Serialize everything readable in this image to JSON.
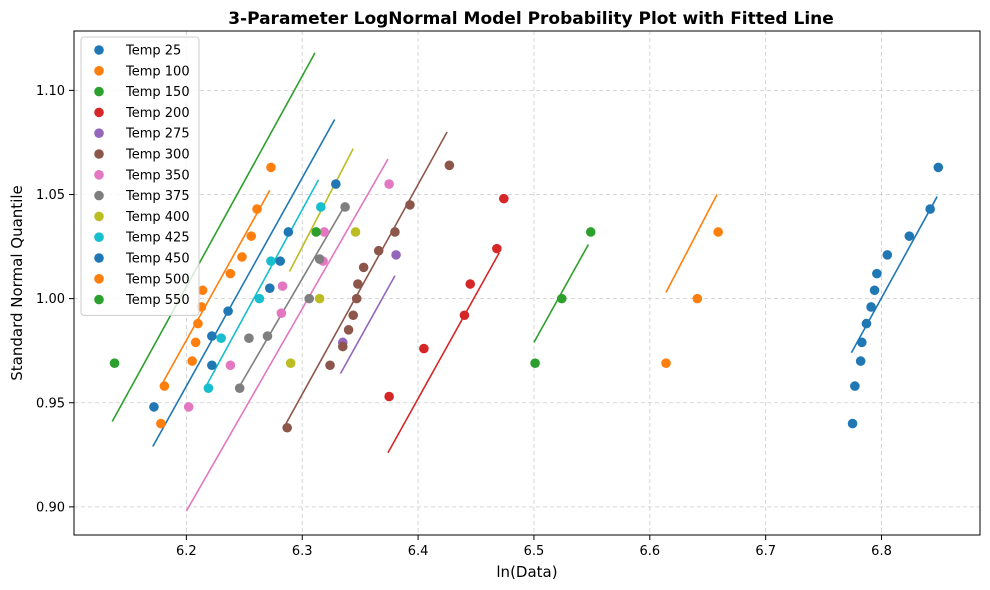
{
  "chart_data": {
    "type": "scatter",
    "title": "3-Parameter LogNormal Model Probability Plot with Fitted Line",
    "xlabel": "ln(Data)",
    "ylabel": "Standard Normal Quantile",
    "xlim": [
      6.103,
      6.885
    ],
    "ylim": [
      0.8865,
      1.1285
    ],
    "xticks": [
      "6.2",
      "6.3",
      "6.4",
      "6.5",
      "6.6",
      "6.7",
      "6.8"
    ],
    "yticks": [
      "0.90",
      "0.95",
      "1.00",
      "1.05",
      "1.10"
    ],
    "grid": true,
    "legend_position": "top-left",
    "series": [
      {
        "name": "Temp 25",
        "color": "#1f77b4",
        "points": [
          [
            6.775,
            0.94
          ],
          [
            6.777,
            0.958
          ],
          [
            6.782,
            0.97
          ],
          [
            6.783,
            0.979
          ],
          [
            6.787,
            0.988
          ],
          [
            6.791,
            0.996
          ],
          [
            6.794,
            1.004
          ],
          [
            6.796,
            1.012
          ],
          [
            6.805,
            1.021
          ],
          [
            6.824,
            1.03
          ],
          [
            6.842,
            1.043
          ],
          [
            6.849,
            1.063
          ]
        ],
        "fit": [
          [
            6.774,
            0.974
          ],
          [
            6.848,
            1.049
          ]
        ]
      },
      {
        "name": "Temp 100",
        "color": "#ff7f0e",
        "points": [
          [
            6.614,
            0.969
          ],
          [
            6.641,
            1.0
          ],
          [
            6.659,
            1.032
          ]
        ],
        "fit": [
          [
            6.614,
            1.003
          ],
          [
            6.658,
            1.05
          ]
        ]
      },
      {
        "name": "Temp 150",
        "color": "#2ca02c",
        "points": [
          [
            6.501,
            0.969
          ],
          [
            6.524,
            1.0
          ],
          [
            6.549,
            1.032
          ]
        ],
        "fit": [
          [
            6.5,
            0.979
          ],
          [
            6.547,
            1.026
          ]
        ]
      },
      {
        "name": "Temp 200",
        "color": "#d62728",
        "points": [
          [
            6.375,
            0.953
          ],
          [
            6.405,
            0.976
          ],
          [
            6.44,
            0.992
          ],
          [
            6.445,
            1.007
          ],
          [
            6.468,
            1.024
          ],
          [
            6.474,
            1.048
          ]
        ],
        "fit": [
          [
            6.374,
            0.926
          ],
          [
            6.47,
            1.022
          ]
        ]
      },
      {
        "name": "Temp 275",
        "color": "#9467bd",
        "points": [
          [
            6.335,
            0.979
          ],
          [
            6.381,
            1.021
          ]
        ],
        "fit": [
          [
            6.333,
            0.964
          ],
          [
            6.38,
            1.011
          ]
        ]
      },
      {
        "name": "Temp 300",
        "color": "#8c564b",
        "points": [
          [
            6.287,
            0.938
          ],
          [
            6.324,
            0.968
          ],
          [
            6.335,
            0.977
          ],
          [
            6.34,
            0.985
          ],
          [
            6.344,
            0.992
          ],
          [
            6.347,
            1.0
          ],
          [
            6.348,
            1.007
          ],
          [
            6.353,
            1.015
          ],
          [
            6.366,
            1.023
          ],
          [
            6.38,
            1.032
          ],
          [
            6.393,
            1.045
          ],
          [
            6.427,
            1.064
          ]
        ],
        "fit": [
          [
            6.286,
            0.94
          ],
          [
            6.425,
            1.08
          ]
        ]
      },
      {
        "name": "Temp 350",
        "color": "#e377c2",
        "points": [
          [
            6.202,
            0.948
          ],
          [
            6.238,
            0.968
          ],
          [
            6.282,
            0.993
          ],
          [
            6.283,
            1.006
          ],
          [
            6.318,
            1.018
          ],
          [
            6.319,
            1.032
          ],
          [
            6.375,
            1.055
          ]
        ],
        "fit": [
          [
            6.2,
            0.898
          ],
          [
            6.374,
            1.067
          ]
        ]
      },
      {
        "name": "Temp 375",
        "color": "#7f7f7f",
        "points": [
          [
            6.246,
            0.957
          ],
          [
            6.254,
            0.981
          ],
          [
            6.27,
            0.982
          ],
          [
            6.306,
            1.0
          ],
          [
            6.315,
            1.019
          ],
          [
            6.337,
            1.044
          ]
        ],
        "fit": [
          [
            6.246,
            0.958
          ],
          [
            6.335,
            1.043
          ]
        ]
      },
      {
        "name": "Temp 400",
        "color": "#bcbd22",
        "points": [
          [
            6.29,
            0.969
          ],
          [
            6.315,
            1.0
          ],
          [
            6.346,
            1.032
          ]
        ],
        "fit": [
          [
            6.289,
            1.013
          ],
          [
            6.344,
            1.072
          ]
        ]
      },
      {
        "name": "Temp 425",
        "color": "#17becf",
        "points": [
          [
            6.219,
            0.957
          ],
          [
            6.23,
            0.981
          ],
          [
            6.263,
            1.0
          ],
          [
            6.273,
            1.018
          ],
          [
            6.316,
            1.044
          ]
        ],
        "fit": [
          [
            6.218,
            0.959
          ],
          [
            6.314,
            1.057
          ]
        ]
      },
      {
        "name": "Temp 450",
        "color": "#1f77b4",
        "points": [
          [
            6.172,
            0.948
          ],
          [
            6.222,
            0.968
          ],
          [
            6.222,
            0.982
          ],
          [
            6.236,
            0.994
          ],
          [
            6.272,
            1.005
          ],
          [
            6.281,
            1.018
          ],
          [
            6.288,
            1.032
          ],
          [
            6.329,
            1.055
          ]
        ],
        "fit": [
          [
            6.171,
            0.929
          ],
          [
            6.328,
            1.086
          ]
        ]
      },
      {
        "name": "Temp 500",
        "color": "#ff7f0e",
        "points": [
          [
            6.178,
            0.94
          ],
          [
            6.181,
            0.958
          ],
          [
            6.205,
            0.97
          ],
          [
            6.208,
            0.979
          ],
          [
            6.21,
            0.988
          ],
          [
            6.213,
            0.996
          ],
          [
            6.214,
            1.004
          ],
          [
            6.238,
            1.012
          ],
          [
            6.248,
            1.02
          ],
          [
            6.256,
            1.03
          ],
          [
            6.261,
            1.043
          ],
          [
            6.273,
            1.063
          ]
        ],
        "fit": [
          [
            6.178,
            0.958
          ],
          [
            6.272,
            1.052
          ]
        ]
      },
      {
        "name": "Temp 550",
        "color": "#2ca02c",
        "points": [
          [
            6.138,
            0.969
          ],
          [
            6.312,
            1.032
          ]
        ],
        "fit": [
          [
            6.136,
            0.941
          ],
          [
            6.311,
            1.118
          ]
        ]
      }
    ]
  }
}
